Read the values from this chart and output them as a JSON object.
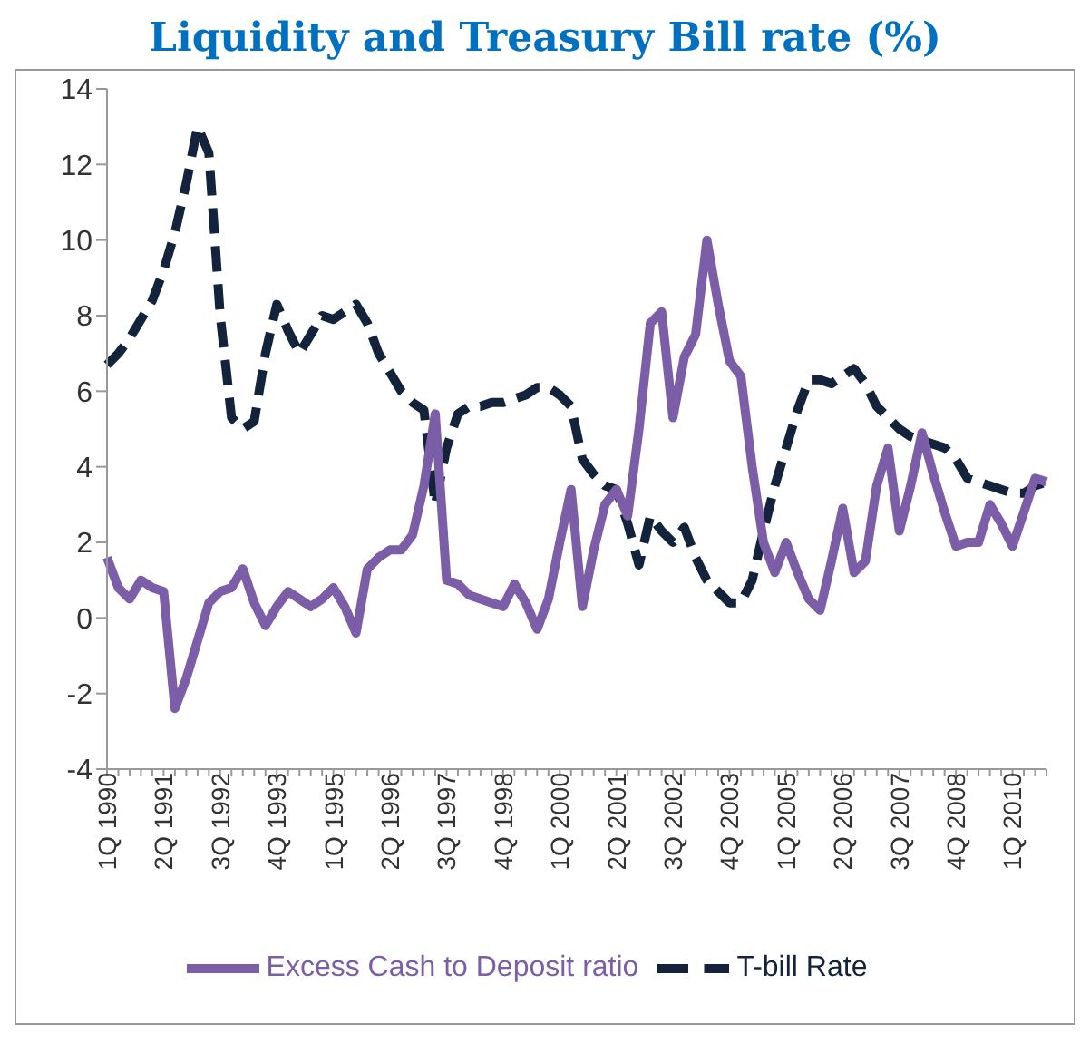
{
  "chart_data": {
    "type": "line",
    "title": "Liquidity and Treasury Bill rate (%)",
    "categories": [
      "1Q 1990",
      null,
      null,
      null,
      null,
      "2Q 1991",
      null,
      null,
      null,
      null,
      "3Q 1992",
      null,
      null,
      null,
      null,
      "4Q 1993",
      null,
      null,
      null,
      null,
      "1Q 1995",
      null,
      null,
      null,
      null,
      "2Q 1996",
      null,
      null,
      null,
      null,
      "3Q 1997",
      null,
      null,
      null,
      null,
      "4Q 1998",
      null,
      null,
      null,
      null,
      "1Q 2000",
      null,
      null,
      null,
      null,
      "2Q 2001",
      null,
      null,
      null,
      null,
      "3Q 2002",
      null,
      null,
      null,
      null,
      "4Q 2003",
      null,
      null,
      null,
      null,
      "1Q 2005",
      null,
      null,
      null,
      null,
      "2Q 2006",
      null,
      null,
      null,
      null,
      "3Q 2007",
      null,
      null,
      null,
      null,
      "4Q 2008",
      null,
      null,
      null,
      null,
      "1Q 2010",
      null,
      null,
      null
    ],
    "series": [
      {
        "name": "T-bill Rate",
        "color": "#14233c",
        "line_style": "dashed",
        "values": [
          6.7,
          7.0,
          7.4,
          7.9,
          8.4,
          9.2,
          10.2,
          11.5,
          13.0,
          12.3,
          8.0,
          5.3,
          5.0,
          5.2,
          7.0,
          8.3,
          7.6,
          7.0,
          7.5,
          8.0,
          7.9,
          8.1,
          8.3,
          7.8,
          7.0,
          6.5,
          6.0,
          5.7,
          5.5,
          3.0,
          4.5,
          5.4,
          5.6,
          5.6,
          5.7,
          5.7,
          5.8,
          5.9,
          6.1,
          6.1,
          5.9,
          5.6,
          4.2,
          3.8,
          3.5,
          3.4,
          2.5,
          1.4,
          2.7,
          2.3,
          2.0,
          2.4,
          1.6,
          1.0,
          0.7,
          0.4,
          0.4,
          1.0,
          2.3,
          3.5,
          4.5,
          5.5,
          6.3,
          6.3,
          6.2,
          6.4,
          6.6,
          6.2,
          5.6,
          5.3,
          5.0,
          4.8,
          4.7,
          4.6,
          4.5,
          4.2,
          3.7,
          3.6,
          3.5,
          3.4,
          3.3,
          3.3,
          3.5,
          3.6
        ]
      },
      {
        "name": "Excess Cash to Deposit ratio",
        "color": "#7b5ea7",
        "line_style": "solid",
        "values": [
          1.6,
          0.8,
          0.5,
          1.0,
          0.8,
          0.7,
          -2.4,
          -1.6,
          -0.6,
          0.4,
          0.7,
          0.8,
          1.3,
          0.4,
          -0.2,
          0.3,
          0.7,
          0.5,
          0.3,
          0.5,
          0.8,
          0.3,
          -0.4,
          1.3,
          1.6,
          1.8,
          1.8,
          2.2,
          3.5,
          5.4,
          1.0,
          0.9,
          0.6,
          0.5,
          0.4,
          0.3,
          0.9,
          0.4,
          -0.3,
          0.5,
          2.0,
          3.4,
          0.3,
          1.8,
          3.0,
          3.4,
          2.7,
          5.0,
          7.8,
          8.1,
          5.3,
          6.9,
          7.5,
          10.0,
          8.3,
          6.8,
          6.4,
          4.0,
          2.0,
          1.2,
          2.0,
          1.2,
          0.5,
          0.2,
          1.5,
          2.9,
          1.2,
          1.5,
          3.5,
          4.5,
          2.3,
          3.5,
          4.9,
          3.8,
          2.8,
          1.9,
          2.0,
          2.0,
          3.0,
          2.5,
          1.9,
          2.8,
          3.7,
          3.6
        ]
      }
    ],
    "ylim": [
      -4,
      14
    ],
    "yticks": [
      -4,
      -2,
      0,
      2,
      4,
      6,
      8,
      10,
      12,
      14
    ],
    "grid": false,
    "legend": "bottom",
    "marker": "none"
  }
}
